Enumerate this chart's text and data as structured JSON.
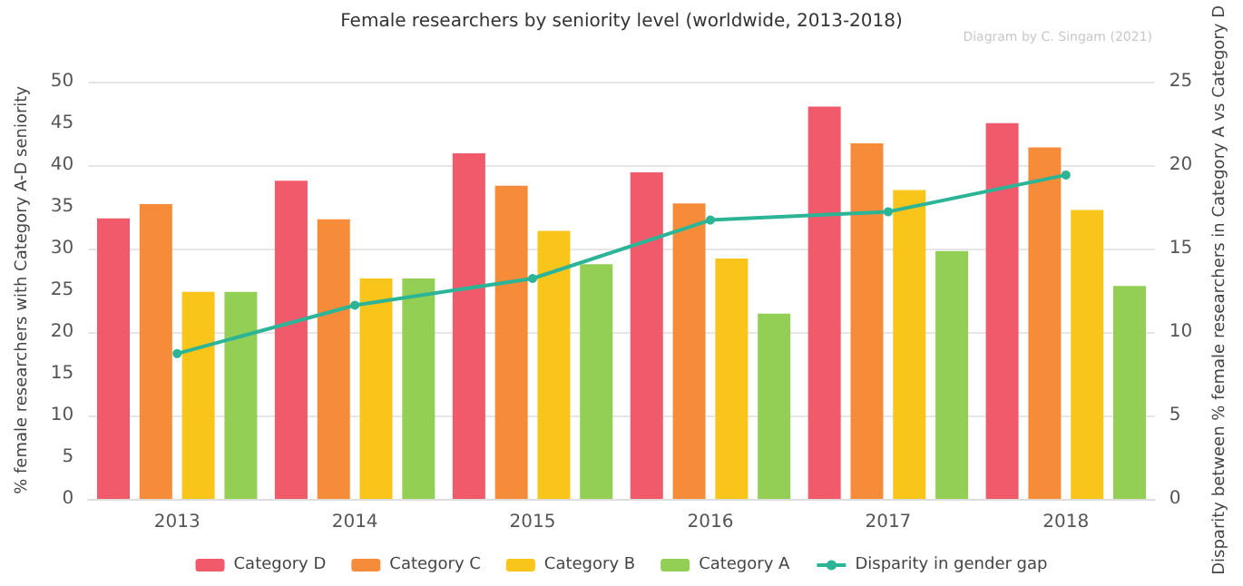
{
  "chart_data": {
    "type": "bar",
    "title": "Female researchers by seniority level (worldwide, 2013-2018)",
    "ylabel": "% female researchers with Category A-D seniority",
    "y2label": "Disparity between % female researchers in Category A vs Category D",
    "annotations": [
      "Diagram by C. Singam (2021)"
    ],
    "categories": [
      "2013",
      "2014",
      "2015",
      "2016",
      "2017",
      "2018"
    ],
    "series": [
      {
        "name": "Category D",
        "color": "#f05a6a",
        "values": [
          33.6,
          38.1,
          41.4,
          39.1,
          47.0,
          45.0
        ]
      },
      {
        "name": "Category C",
        "color": "#f68c3a",
        "values": [
          35.3,
          33.5,
          37.5,
          35.4,
          42.6,
          42.1
        ]
      },
      {
        "name": "Category B",
        "color": "#f9c51b",
        "values": [
          24.8,
          26.4,
          32.1,
          28.8,
          37.0,
          34.6
        ]
      },
      {
        "name": "Category A",
        "color": "#94cf55",
        "values": [
          24.8,
          26.4,
          28.1,
          22.2,
          29.7,
          25.5
        ]
      },
      {
        "name": "Disparity in gender gap",
        "type": "line",
        "axis": "y2",
        "color": "#2bb596",
        "values": [
          8.7,
          11.6,
          13.2,
          16.7,
          17.2,
          19.4
        ]
      }
    ],
    "ylim": [
      0,
      50
    ],
    "yticks": [
      0,
      5,
      10,
      15,
      20,
      25,
      30,
      35,
      40,
      45,
      50
    ],
    "y2lim": [
      0,
      25
    ],
    "y2ticks": [
      0,
      5,
      10,
      15,
      20,
      25
    ],
    "grid": "y",
    "legend": "bottom",
    "marker": "circle"
  }
}
